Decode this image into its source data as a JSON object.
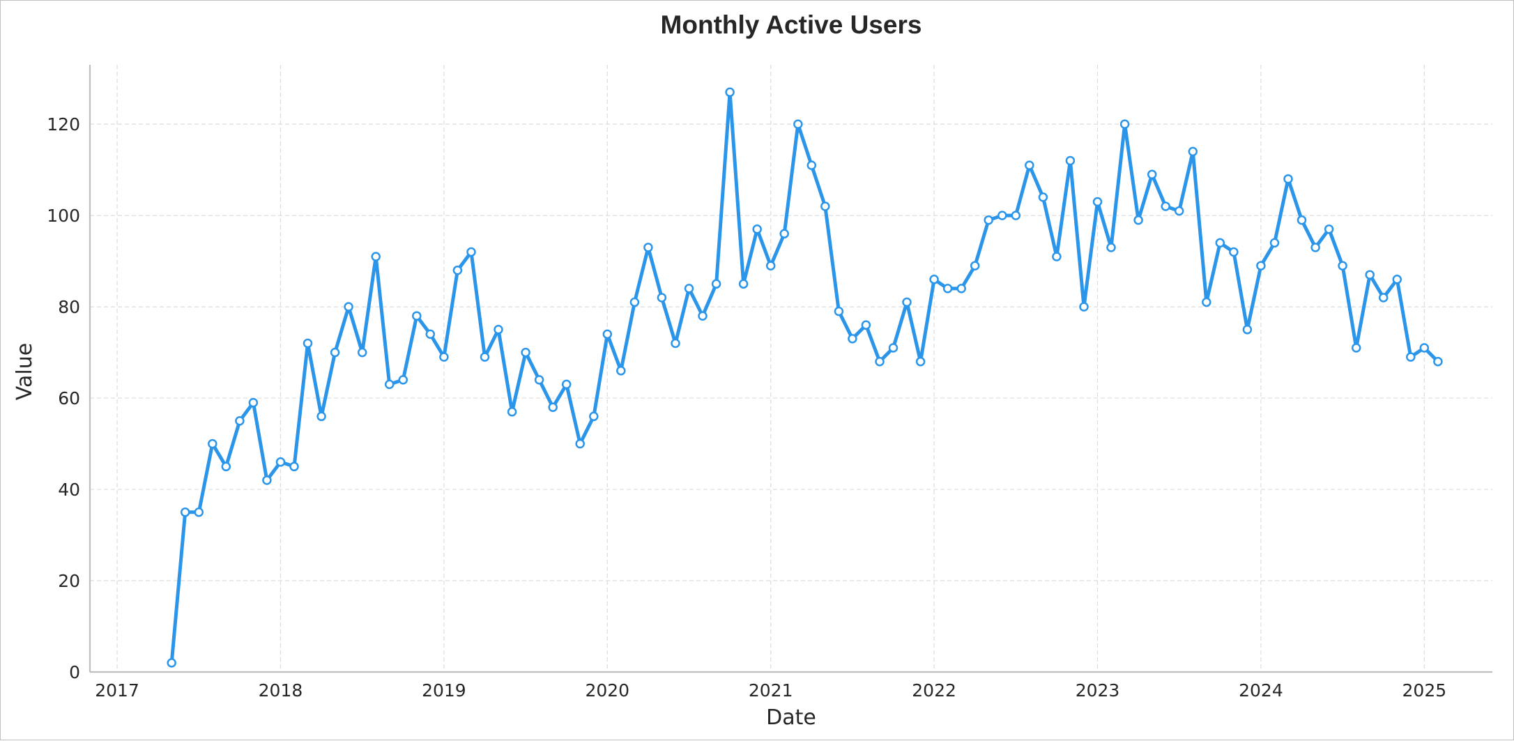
{
  "chart_data": {
    "type": "line",
    "title": "Monthly Active Users",
    "xlabel": "Date",
    "ylabel": "Value",
    "xlim": [
      "2016-11",
      "2025-06"
    ],
    "ylim": [
      0,
      133
    ],
    "x_ticks": [
      "2017",
      "2018",
      "2019",
      "2020",
      "2021",
      "2022",
      "2023",
      "2024",
      "2025"
    ],
    "y_ticks": [
      0,
      20,
      40,
      60,
      80,
      100,
      120
    ],
    "grid": true,
    "legend": "none",
    "color": "#2b95ea",
    "series": [
      {
        "x": [
          "2017-05",
          "2017-06",
          "2017-07",
          "2017-08",
          "2017-09",
          "2017-10",
          "2017-11",
          "2017-12",
          "2018-01",
          "2018-02",
          "2018-03",
          "2018-04",
          "2018-05",
          "2018-06",
          "2018-07",
          "2018-08",
          "2018-09",
          "2018-10",
          "2018-11",
          "2018-12",
          "2019-01",
          "2019-02",
          "2019-03",
          "2019-04",
          "2019-05",
          "2019-06",
          "2019-07",
          "2019-08",
          "2019-09",
          "2019-10",
          "2019-11",
          "2019-12",
          "2020-01",
          "2020-02",
          "2020-03",
          "2020-04",
          "2020-05",
          "2020-06",
          "2020-07",
          "2020-08",
          "2020-09",
          "2020-10",
          "2020-11",
          "2020-12",
          "2021-01",
          "2021-02",
          "2021-03",
          "2021-04",
          "2021-05",
          "2021-06",
          "2021-07",
          "2021-08",
          "2021-09",
          "2021-10",
          "2021-11",
          "2021-12",
          "2022-01",
          "2022-02",
          "2022-03",
          "2022-04",
          "2022-05",
          "2022-06",
          "2022-07",
          "2022-08",
          "2022-09",
          "2022-10",
          "2022-11",
          "2022-12",
          "2023-01",
          "2023-02",
          "2023-03",
          "2023-04",
          "2023-05",
          "2023-06",
          "2023-07",
          "2023-08",
          "2023-09",
          "2023-10",
          "2023-11",
          "2023-12",
          "2024-01",
          "2024-02",
          "2024-03",
          "2024-04",
          "2024-05",
          "2024-06",
          "2024-07",
          "2024-08",
          "2024-09",
          "2024-10",
          "2024-11",
          "2024-12",
          "2025-01",
          "2025-02"
        ],
        "values": [
          2,
          35,
          35,
          50,
          45,
          55,
          59,
          42,
          46,
          45,
          72,
          56,
          70,
          80,
          70,
          91,
          63,
          64,
          78,
          74,
          69,
          88,
          92,
          69,
          75,
          57,
          70,
          64,
          58,
          63,
          50,
          56,
          74,
          66,
          81,
          93,
          82,
          72,
          84,
          78,
          85,
          127,
          85,
          97,
          89,
          96,
          120,
          111,
          102,
          79,
          73,
          76,
          68,
          71,
          81,
          68,
          86,
          84,
          84,
          89,
          99,
          100,
          100,
          111,
          104,
          91,
          112,
          80,
          103,
          93,
          120,
          99,
          109,
          102,
          101,
          114,
          81,
          94,
          92,
          75,
          89,
          94,
          108,
          99,
          93,
          97,
          89,
          71,
          87,
          82,
          86,
          69,
          71,
          68
        ]
      }
    ]
  }
}
